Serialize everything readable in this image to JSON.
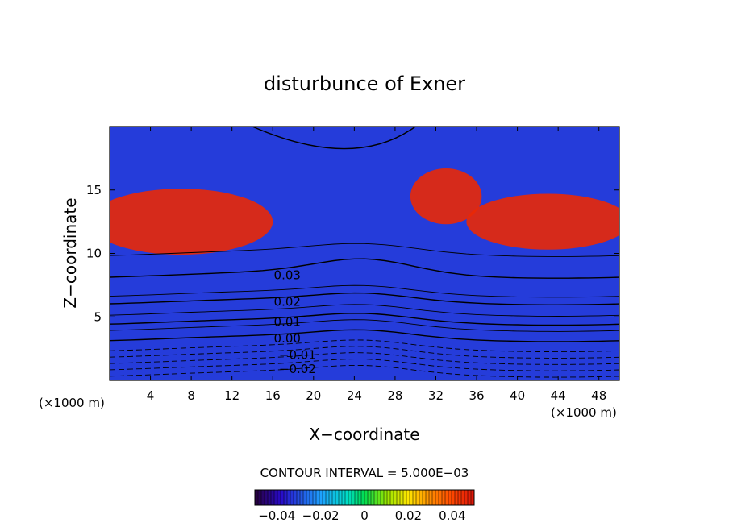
{
  "chart_data": {
    "type": "heatmap",
    "title": "disturbunce of Exner",
    "xlabel": "X−coordinate",
    "ylabel": "Z−coordinate",
    "x_unit": "(×1000 m)",
    "y_unit": "(×1000 m)",
    "xlim": [
      0,
      50
    ],
    "ylim": [
      0,
      20
    ],
    "x_ticks": [
      "4",
      "8",
      "12",
      "16",
      "20",
      "24",
      "28",
      "32",
      "36",
      "40",
      "44",
      "48"
    ],
    "y_ticks": [
      "5",
      "10",
      "15"
    ],
    "contour_interval_text": "CONTOUR INTERVAL = 5.000E−03",
    "contour_labels": [
      {
        "text": "0.03",
        "x": 16,
        "z": 8.3
      },
      {
        "text": "0.02",
        "x": 16,
        "z": 6.2
      },
      {
        "text": "0.01",
        "x": 16,
        "z": 4.6
      },
      {
        "text": "0.00",
        "x": 16,
        "z": 3.3
      },
      {
        "text": "−0.01",
        "x": 17,
        "z": 2.0
      },
      {
        "text": "−0.02",
        "x": 17,
        "z": 0.9
      }
    ],
    "colorbar": {
      "range": [
        -0.05,
        0.05
      ],
      "tick_labels": [
        "−0.04",
        "−0.02",
        "0",
        "0.02",
        "0.04"
      ],
      "tick_values": [
        -0.04,
        -0.02,
        0,
        0.02,
        0.04
      ]
    },
    "field_levels_z": [
      0,
      0.5,
      1,
      1.5,
      2,
      2.5,
      3,
      3.5,
      4,
      4.5,
      5,
      5.5,
      6,
      6.5,
      7,
      7.5,
      8,
      9,
      10,
      12,
      14,
      16,
      18,
      20
    ],
    "field_values": [
      -0.032,
      -0.027,
      -0.022,
      -0.018,
      -0.013,
      -0.009,
      -0.004,
      0.0,
      0.005,
      0.01,
      0.014,
      0.018,
      0.021,
      0.025,
      0.028,
      0.031,
      0.034,
      0.037,
      0.039,
      0.041,
      0.041,
      0.039,
      0.037,
      0.035
    ]
  }
}
